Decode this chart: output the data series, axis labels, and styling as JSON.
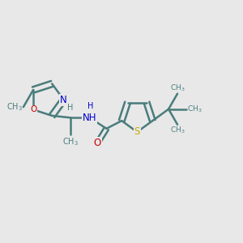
{
  "bg_color": "#e8e8e8",
  "bond_color": "#4a7c7c",
  "bond_width": 1.8,
  "atom_colors": {
    "N": "#0000cc",
    "O": "#cc0000",
    "S": "#ccaa00",
    "C": "#4a7c7c"
  },
  "font_size": 8.5,
  "fig_width": 3.0,
  "fig_height": 3.0,
  "dpi": 100,
  "xlim": [
    0,
    12
  ],
  "ylim": [
    0,
    10
  ]
}
